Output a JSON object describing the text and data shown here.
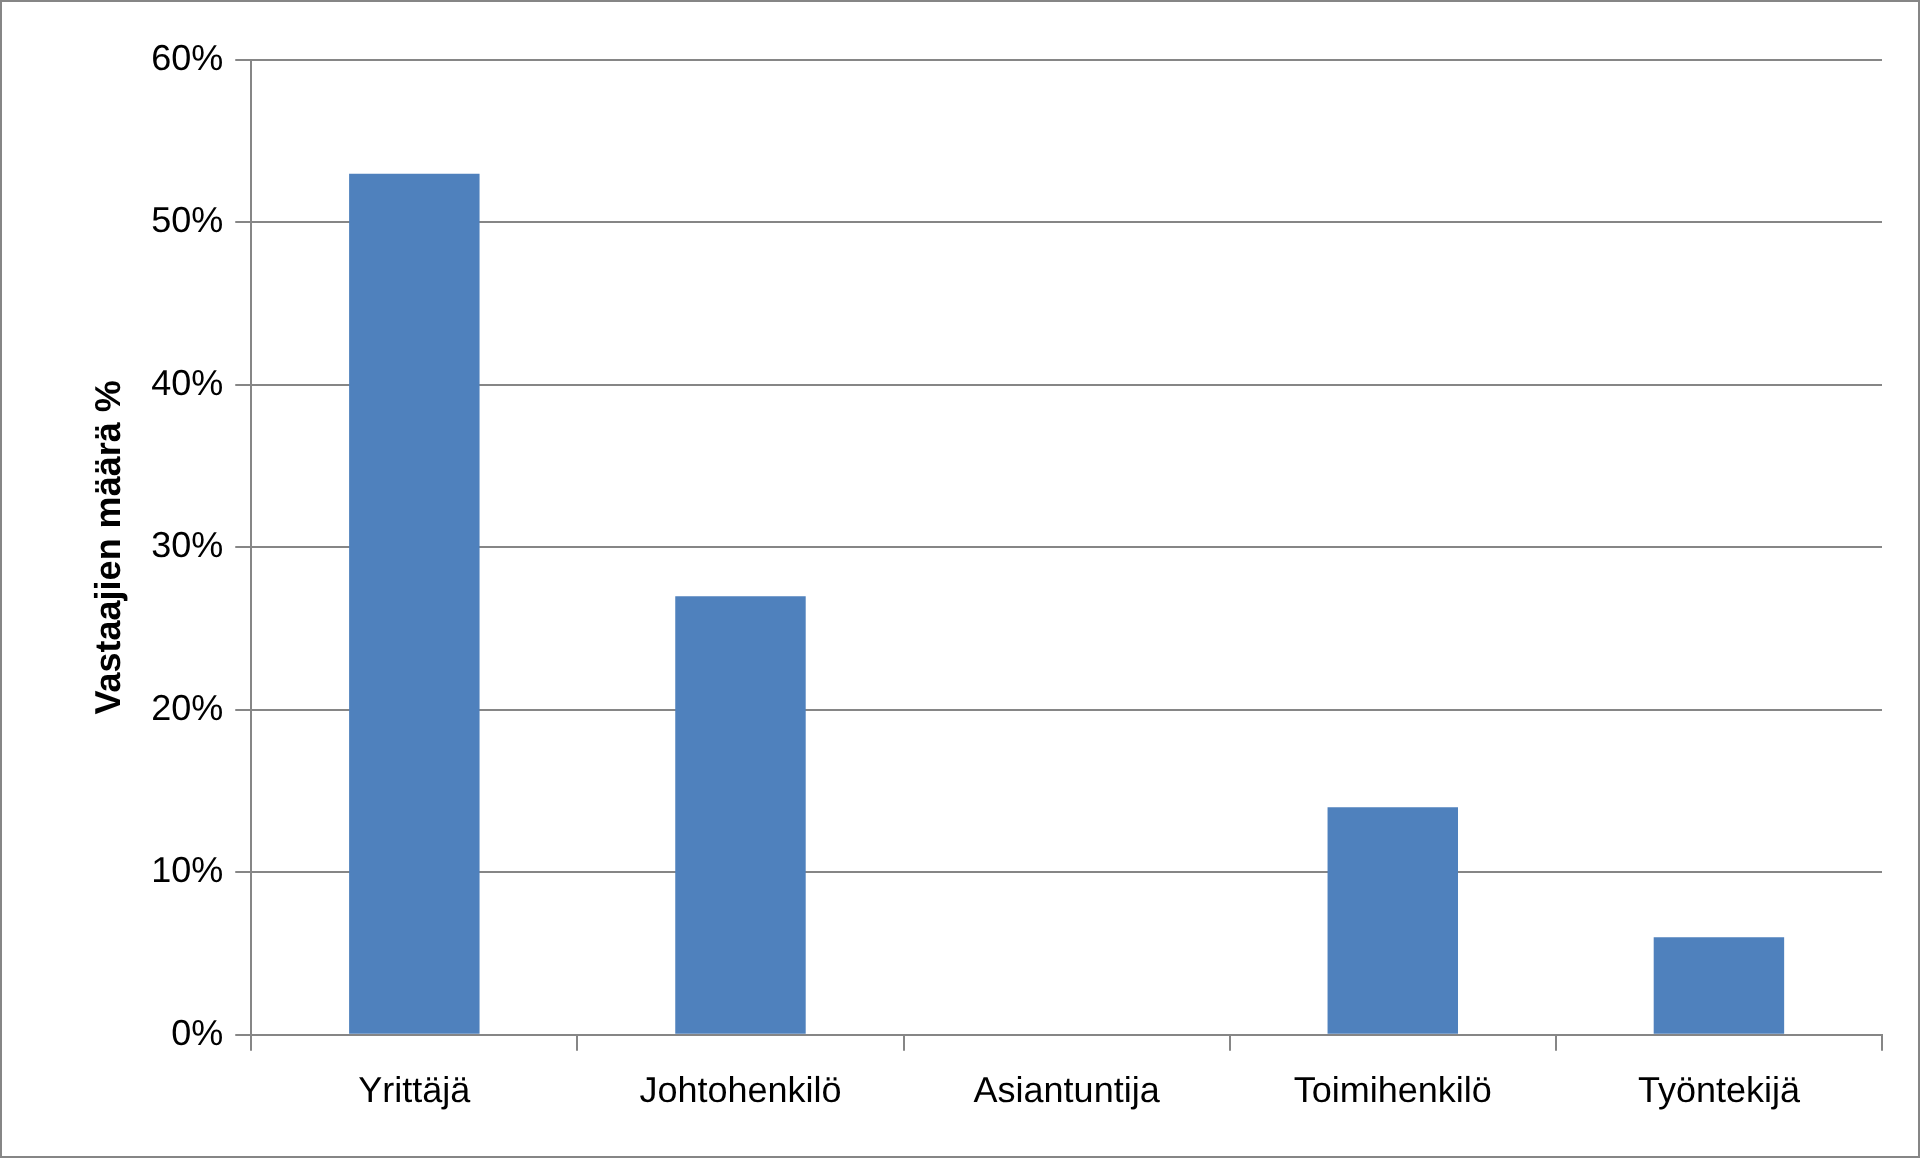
{
  "chart_data": {
    "type": "bar",
    "ylabel": "Vastaajien määrä %",
    "categories": [
      "Yrittäjä",
      "Johtohenkilö",
      "Asiantuntija",
      "Toimihenkilö",
      "Työntekijä"
    ],
    "values": [
      53,
      27,
      0,
      14,
      6
    ],
    "color": "#4f81bd",
    "ylim": [
      0,
      60
    ],
    "yticks": [
      {
        "value": 0,
        "label": "0%"
      },
      {
        "value": 10,
        "label": "10%"
      },
      {
        "value": 20,
        "label": "20%"
      },
      {
        "value": 30,
        "label": "30%"
      },
      {
        "value": 40,
        "label": "40%"
      },
      {
        "value": 50,
        "label": "50%"
      },
      {
        "value": 60,
        "label": "60%"
      }
    ],
    "grid": "y",
    "legend": false
  }
}
